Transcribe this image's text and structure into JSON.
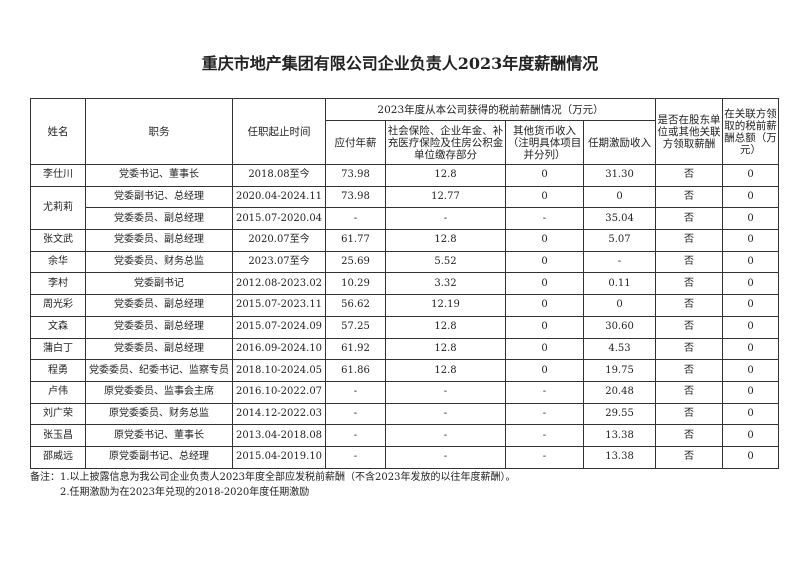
{
  "title": "重庆市地产集团有限公司企业负责人2023年度薪酬情况",
  "headers": {
    "name": "姓名",
    "position": "职务",
    "tenure": "任职起止时间",
    "group": "2023年度从本公司获得的税前薪酬情况（万元）",
    "salary": "应付年薪",
    "social": "社会保险、企业年金、补充医疗保险及住房公积金单位缴存部分",
    "other": "其他货币收入（注明具体项目并分列）",
    "incentive": "任期激励收入",
    "related_flag": "是否在股东单位或其他关联方领取薪酬",
    "related_total": "在关联方领取的税前薪酬总额（万元）"
  },
  "rows": [
    [
      "李仕川",
      "党委书记、董事长",
      "2018.08至今",
      "73.98",
      "12.8",
      "0",
      "31.30",
      "否",
      "0"
    ],
    [
      "尤莉莉",
      "党委副书记、总经理",
      "2020.04-2024.11",
      "73.98",
      "12.77",
      "0",
      "0",
      "否",
      "0"
    ],
    [
      "",
      "党委委员、副总经理",
      "2015.07-2020.04",
      "-",
      "-",
      "-",
      "35.04",
      "否",
      "0"
    ],
    [
      "张文武",
      "党委委员、副总经理",
      "2020.07至今",
      "61.77",
      "12.8",
      "0",
      "5.07",
      "否",
      "0"
    ],
    [
      "余华",
      "党委委员、财务总监",
      "2023.07至今",
      "25.69",
      "5.52",
      "0",
      "-",
      "否",
      "0"
    ],
    [
      "李村",
      "党委副书记",
      "2012.08-2023.02",
      "10.29",
      "3.32",
      "0",
      "0.11",
      "否",
      "0"
    ],
    [
      "周光彩",
      "党委委员、副总经理",
      "2015.07-2023.11",
      "56.62",
      "12.19",
      "0",
      "0",
      "否",
      "0"
    ],
    [
      "文森",
      "党委委员、副总经理",
      "2015.07-2024.09",
      "57.25",
      "12.8",
      "0",
      "30.60",
      "否",
      "0"
    ],
    [
      "蒲白丁",
      "党委委员、副总经理",
      "2016.09-2024.10",
      "61.92",
      "12.8",
      "0",
      "4.53",
      "否",
      "0"
    ],
    [
      "程勇",
      "党委委员、纪委书记、监察专员",
      "2018.10-2024.05",
      "61.86",
      "12.8",
      "0",
      "19.75",
      "否",
      "0"
    ],
    [
      "卢伟",
      "原党委委员、监事会主席",
      "2016.10-2022.07",
      "-",
      "-",
      "-",
      "20.48",
      "否",
      "0"
    ],
    [
      "刘广荣",
      "原党委委员、财务总监",
      "2014.12-2022.03",
      "-",
      "-",
      "-",
      "29.55",
      "否",
      "0"
    ],
    [
      "张玉昌",
      "原党委书记、董事长",
      "2013.04-2018.08",
      "-",
      "-",
      "-",
      "13.38",
      "否",
      "0"
    ],
    [
      "邵威远",
      "原党委副书记、总经理",
      "2015.04-2019.10",
      "-",
      "-",
      "-",
      "13.38",
      "否",
      "0"
    ]
  ],
  "notes": [
    "备注：1.以上披露信息为我公司企业负责人2023年度全部应发税前薪酬（不含2023年发放的以往年度薪酬）。",
    "2.任期激励为在2023年兑现的2018-2020年度任期激励"
  ]
}
